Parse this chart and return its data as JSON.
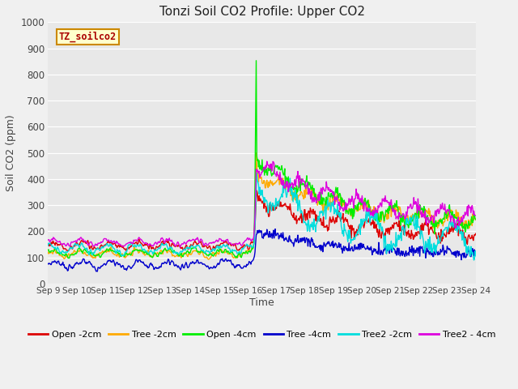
{
  "title": "Tonzi Soil CO2 Profile: Upper CO2",
  "xlabel": "Time",
  "ylabel": "Soil CO2 (ppm)",
  "ylim": [
    0,
    1000
  ],
  "watermark": "TZ_soilco2",
  "fig_bg": "#f0f0f0",
  "plot_bg": "#e8e8e8",
  "grid_color": "#ffffff",
  "x_tick_labels": [
    "Sep 9",
    "Sep 10",
    "Sep 11",
    "Sep 12",
    "Sep 13",
    "Sep 14",
    "Sep 15",
    "Sep 16",
    "Sep 17",
    "Sep 18",
    "Sep 19",
    "Sep 20",
    "Sep 21",
    "Sep 22",
    "Sep 23",
    "Sep 24"
  ],
  "yticks": [
    0,
    100,
    200,
    300,
    400,
    500,
    600,
    700,
    800,
    900,
    1000
  ],
  "series_order": [
    "Open -2cm",
    "Tree -2cm",
    "Open -4cm",
    "Tree -4cm",
    "Tree2 -2cm",
    "Tree2 - 4cm"
  ],
  "series": {
    "Open -2cm": {
      "color": "#dd0000",
      "lw": 1.0
    },
    "Tree -2cm": {
      "color": "#ffaa00",
      "lw": 1.0
    },
    "Open -4cm": {
      "color": "#00ee00",
      "lw": 1.0
    },
    "Tree -4cm": {
      "color": "#0000cc",
      "lw": 1.0
    },
    "Tree2 -2cm": {
      "color": "#00dddd",
      "lw": 1.0
    },
    "Tree2 - 4cm": {
      "color": "#dd00dd",
      "lw": 1.0
    }
  },
  "spike_day": 7.33,
  "n_days": 15,
  "seed": 42
}
